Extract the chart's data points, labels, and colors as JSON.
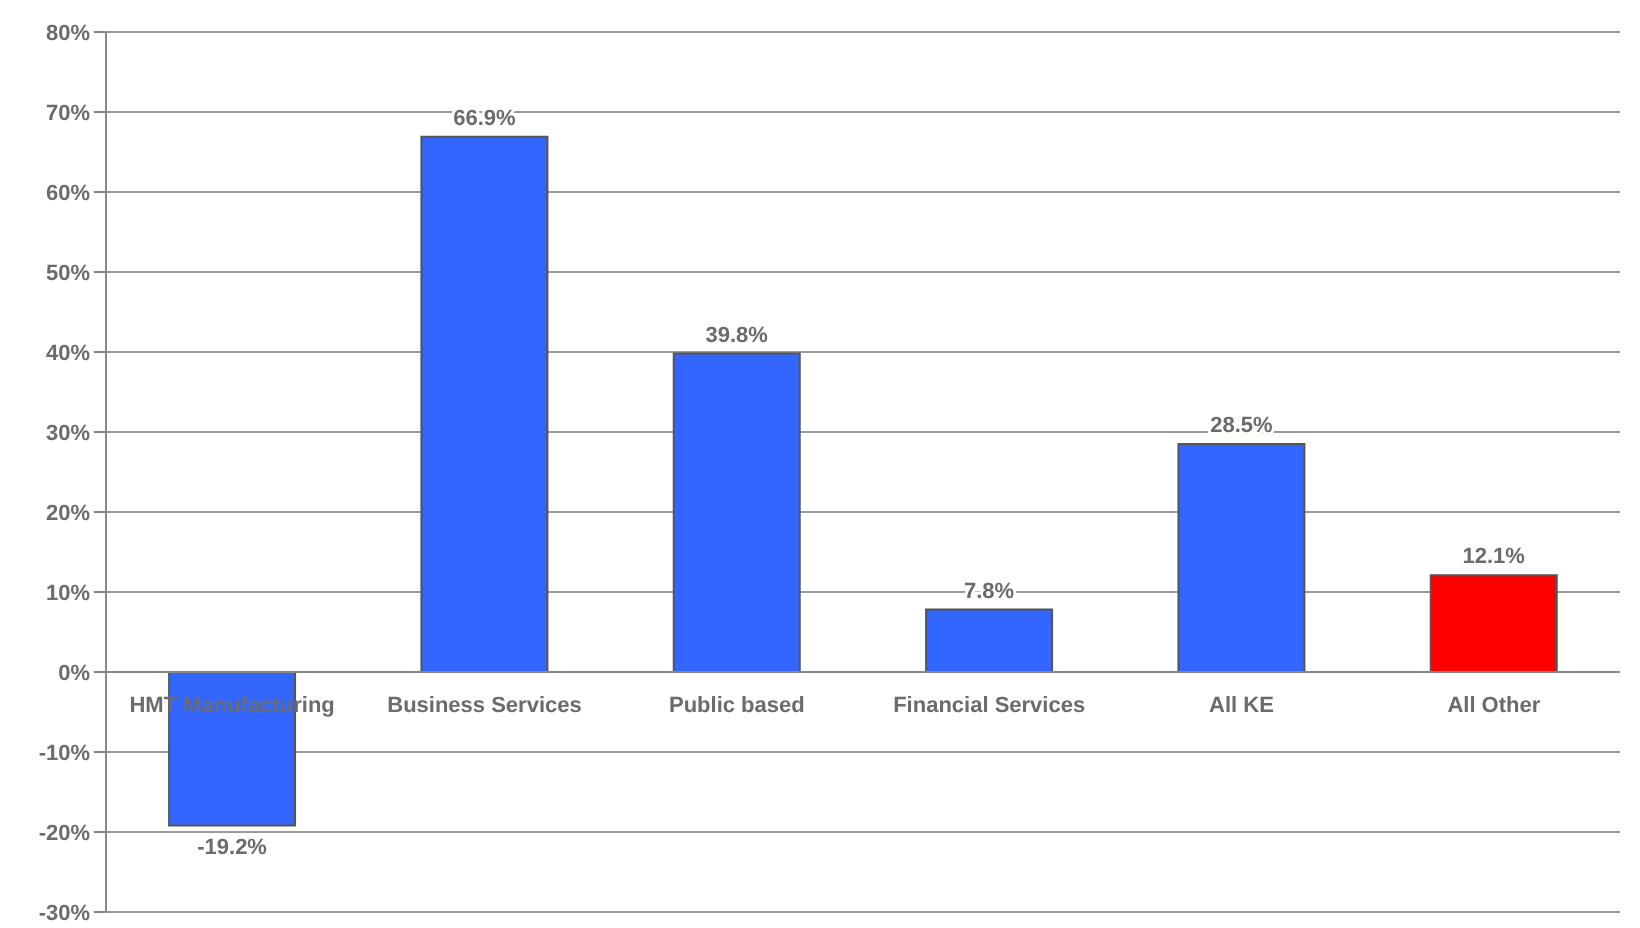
{
  "chart_data": {
    "type": "bar",
    "categories": [
      "HMT Manufacturing",
      "Business Services",
      "Public based",
      "Financial Services",
      "All KE",
      "All Other"
    ],
    "values": [
      -19.2,
      66.9,
      39.8,
      7.8,
      28.5,
      12.1
    ],
    "colors": [
      "#3366ff",
      "#3366ff",
      "#3366ff",
      "#3366ff",
      "#3366ff",
      "#ff0000"
    ],
    "value_labels": [
      "-19.2%",
      "66.9%",
      "39.8%",
      "7.8%",
      "28.5%",
      "12.1%"
    ],
    "ylim": [
      -30,
      80
    ],
    "yticks": [
      {
        "value": -30,
        "label": "-30%"
      },
      {
        "value": -20,
        "label": "-20%"
      },
      {
        "value": -10,
        "label": "-10%"
      },
      {
        "value": 0,
        "label": "0%"
      },
      {
        "value": 10,
        "label": "10%"
      },
      {
        "value": 20,
        "label": "20%"
      },
      {
        "value": 30,
        "label": "30%"
      },
      {
        "value": 40,
        "label": "40%"
      },
      {
        "value": 50,
        "label": "50%"
      },
      {
        "value": 60,
        "label": "60%"
      },
      {
        "value": 70,
        "label": "70%"
      },
      {
        "value": 80,
        "label": "80%"
      }
    ],
    "grid": "y"
  }
}
